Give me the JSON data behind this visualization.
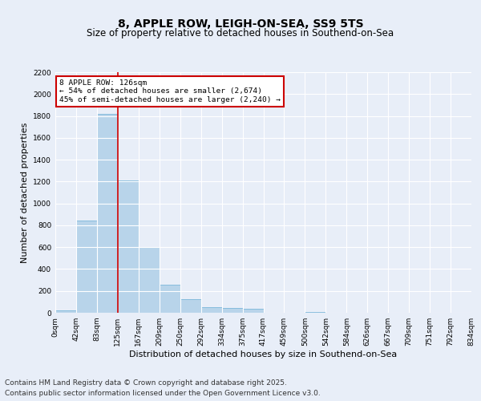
{
  "title": "8, APPLE ROW, LEIGH-ON-SEA, SS9 5TS",
  "subtitle": "Size of property relative to detached houses in Southend-on-Sea",
  "xlabel": "Distribution of detached houses by size in Southend-on-Sea",
  "ylabel": "Number of detached properties",
  "bar_values": [
    25,
    845,
    1820,
    1210,
    600,
    258,
    128,
    55,
    45,
    35,
    0,
    0,
    10,
    0,
    0,
    0,
    0,
    0,
    0,
    0
  ],
  "bar_labels": [
    "0sqm",
    "42sqm",
    "83sqm",
    "125sqm",
    "167sqm",
    "209sqm",
    "250sqm",
    "292sqm",
    "334sqm",
    "375sqm",
    "417sqm",
    "459sqm",
    "500sqm",
    "542sqm",
    "584sqm",
    "626sqm",
    "667sqm",
    "709sqm",
    "751sqm",
    "792sqm",
    "834sqm"
  ],
  "bar_color": "#b8d4ea",
  "bar_edge_color": "#6aaed6",
  "annotation_text": "8 APPLE ROW: 126sqm\n← 54% of detached houses are smaller (2,674)\n45% of semi-detached houses are larger (2,240) →",
  "vline_color": "#cc0000",
  "annotation_box_color": "#ffffff",
  "annotation_box_edge": "#cc0000",
  "ylim": [
    0,
    2200
  ],
  "yticks": [
    0,
    200,
    400,
    600,
    800,
    1000,
    1200,
    1400,
    1600,
    1800,
    2000,
    2200
  ],
  "background_color": "#e8eef8",
  "grid_color": "#ffffff",
  "footer_line1": "Contains HM Land Registry data © Crown copyright and database right 2025.",
  "footer_line2": "Contains public sector information licensed under the Open Government Licence v3.0.",
  "title_fontsize": 10,
  "subtitle_fontsize": 8.5,
  "ylabel_fontsize": 8,
  "xlabel_fontsize": 8,
  "footer_fontsize": 6.5,
  "tick_fontsize": 6.5
}
